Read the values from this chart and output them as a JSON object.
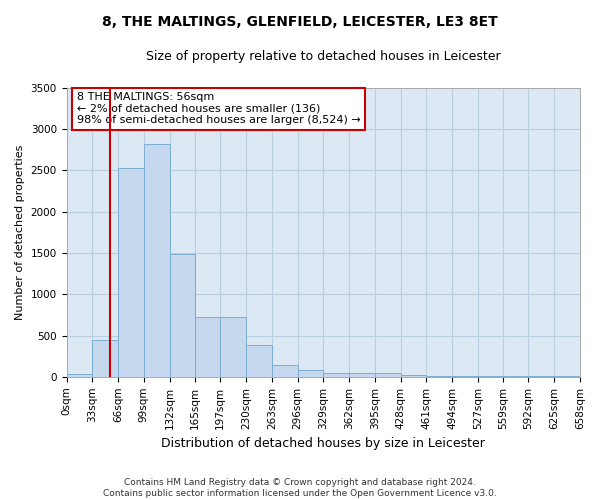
{
  "title": "8, THE MALTINGS, GLENFIELD, LEICESTER, LE3 8ET",
  "subtitle": "Size of property relative to detached houses in Leicester",
  "xlabel": "Distribution of detached houses by size in Leicester",
  "ylabel": "Number of detached properties",
  "footer_line1": "Contains HM Land Registry data © Crown copyright and database right 2024.",
  "footer_line2": "Contains public sector information licensed under the Open Government Licence v3.0.",
  "annotation_title": "8 THE MALTINGS: 56sqm",
  "annotation_line1": "← 2% of detached houses are smaller (136)",
  "annotation_line2": "98% of semi-detached houses are larger (8,524) →",
  "property_size_sqm": 56,
  "bins": [
    0,
    33,
    66,
    99,
    132,
    165,
    197,
    230,
    263,
    296,
    329,
    362,
    395,
    428,
    461,
    494,
    527,
    559,
    592,
    625,
    658
  ],
  "bin_labels": [
    "0sqm",
    "33sqm",
    "66sqm",
    "99sqm",
    "132sqm",
    "165sqm",
    "197sqm",
    "230sqm",
    "263sqm",
    "296sqm",
    "329sqm",
    "362sqm",
    "395sqm",
    "428sqm",
    "461sqm",
    "494sqm",
    "527sqm",
    "559sqm",
    "592sqm",
    "625sqm",
    "658sqm"
  ],
  "values": [
    30,
    450,
    2530,
    2820,
    1490,
    730,
    730,
    380,
    140,
    80,
    50,
    50,
    50,
    20,
    10,
    10,
    5,
    5,
    5,
    5
  ],
  "bar_color": "#c5d8ed",
  "bar_edge_color": "#7aaed0",
  "vline_color": "#cc0000",
  "annotation_box_color": "#cc0000",
  "background_color": "#ffffff",
  "axes_bg_color": "#dde8f5",
  "grid_color": "#b8cfe0",
  "ylim": [
    0,
    3500
  ],
  "yticks": [
    0,
    500,
    1000,
    1500,
    2000,
    2500,
    3000,
    3500
  ],
  "title_fontsize": 10,
  "subtitle_fontsize": 9,
  "ylabel_fontsize": 8,
  "xlabel_fontsize": 9,
  "tick_fontsize": 7.5,
  "annotation_fontsize": 8,
  "footer_fontsize": 6.5
}
